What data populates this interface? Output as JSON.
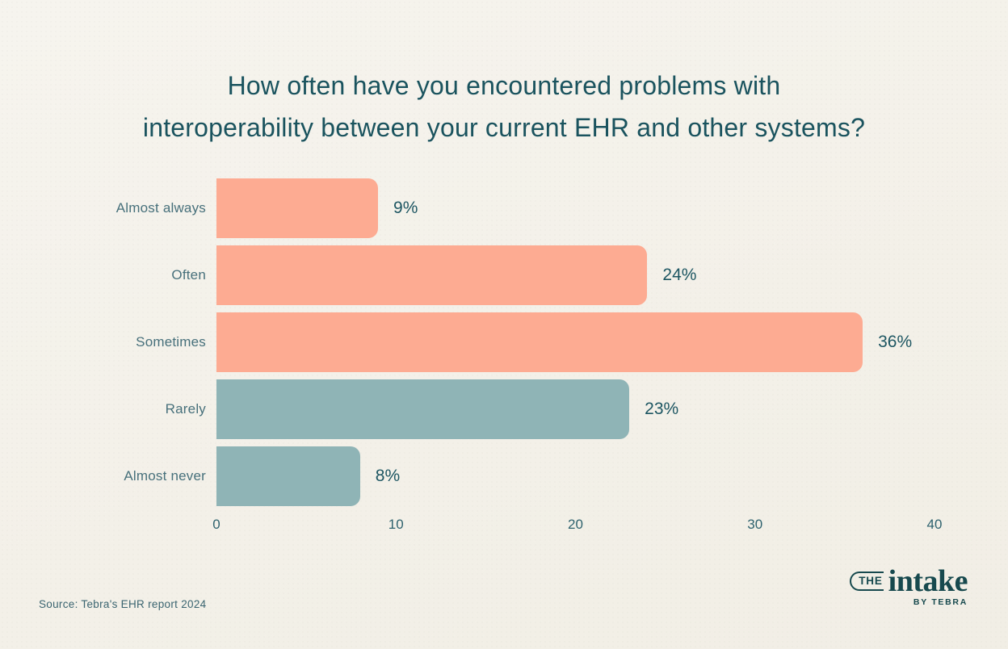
{
  "page": {
    "background": "#F4F1EA"
  },
  "chart_data": {
    "type": "bar",
    "orientation": "horizontal",
    "title": "How often have you encountered problems with interoperability between your current EHR and other systems?",
    "title_lines": [
      "How often have you encountered problems with",
      "interoperability between your current EHR and other systems?"
    ],
    "categories": [
      "Almost always",
      "Often",
      "Sometimes",
      "Rarely",
      "Almost never"
    ],
    "values": [
      9,
      24,
      36,
      23,
      8
    ],
    "value_labels": [
      "9%",
      "24%",
      "36%",
      "23%",
      "8%"
    ],
    "bar_colors": [
      "#FDAB92",
      "#FDAB92",
      "#FDAB92",
      "#8FB4B6",
      "#8FB4B6"
    ],
    "xlabel": "",
    "ylabel": "",
    "xlim": [
      0,
      40
    ],
    "x_ticks": [
      "0",
      "10",
      "20",
      "30",
      "40"
    ],
    "grid": false,
    "legend": "none"
  },
  "footer": {
    "source": "Source: Tebra's EHR report 2024",
    "logo": {
      "the": "THE",
      "name": "intake",
      "byline": "BY TEBRA"
    }
  },
  "colors": {
    "salmon": "#FDAB92",
    "teal": "#8FB4B6",
    "title_text": "#1A535E",
    "category_text": "#47707B",
    "value_text": "#1D5662",
    "tick_text": "#2E626E",
    "logo_teal": "#17494E"
  }
}
